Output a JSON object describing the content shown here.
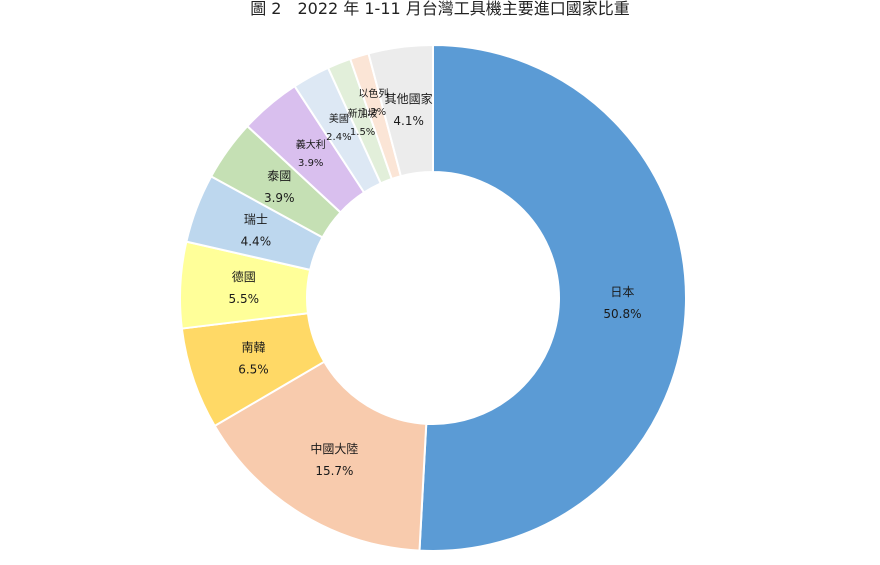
{
  "chart_data": {
    "type": "donut",
    "title": "圖 2　2022 年 1-11 月台灣工具機主要進口國家比重",
    "unit": "%",
    "slices": [
      {
        "name": "日本",
        "value": 50.8,
        "label": "50.8%",
        "color": "#5b9bd5"
      },
      {
        "name": "中國大陸",
        "value": 15.7,
        "label": "15.7%",
        "color": "#f8cbad"
      },
      {
        "name": "南韓",
        "value": 6.5,
        "label": "6.5%",
        "color": "#ffd966"
      },
      {
        "name": "德國",
        "value": 5.5,
        "label": "5.5%",
        "color": "#ffff99"
      },
      {
        "name": "瑞士",
        "value": 4.4,
        "label": "4.4%",
        "color": "#bdd7ee"
      },
      {
        "name": "泰國",
        "value": 3.9,
        "label": "3.9%",
        "color": "#c5e0b4"
      },
      {
        "name": "義大利",
        "value": 3.9,
        "label": "3.9%",
        "color": "#d9bfee"
      },
      {
        "name": "美國",
        "value": 2.4,
        "label": "2.4%",
        "color": "#dde8f4"
      },
      {
        "name": "新加坡",
        "value": 1.5,
        "label": "1.5%",
        "color": "#e2efda"
      },
      {
        "name": "以色列",
        "value": 1.2,
        "label": "1.2%",
        "color": "#fbe5d6"
      },
      {
        "name": "其他國家",
        "value": 4.1,
        "label": "4.1%",
        "color": "#ececec"
      }
    ]
  }
}
